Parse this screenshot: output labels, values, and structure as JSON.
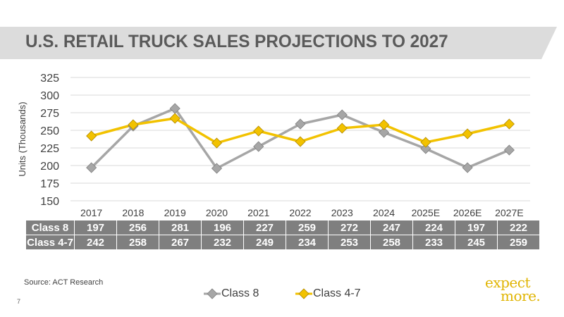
{
  "slide": {
    "title": "U.S. RETAIL TRUCK SALES PROJECTIONS TO 2027",
    "source": "Source:  ACT Research",
    "slide_number": "7",
    "logo_line1": "expect",
    "logo_line2": "more."
  },
  "colors": {
    "title_band": "#dcdcdc",
    "title_text": "#5a5a5a",
    "class8": "#a6a6a6",
    "class4_7": "#f2c200",
    "table_bg": "#7f7f7f",
    "logo": "#e0b400"
  },
  "chart_data": {
    "type": "line",
    "title": "U.S. RETAIL TRUCK SALES PROJECTIONS TO 2027",
    "ylabel": "Units (Thousands)",
    "xlabel": "",
    "ylim": [
      150,
      325
    ],
    "yticks": [
      150,
      175,
      200,
      225,
      250,
      275,
      300,
      325
    ],
    "grid": true,
    "legend_position": "bottom",
    "categories": [
      "2017",
      "2018",
      "2019",
      "2020",
      "2021",
      "2022",
      "2023",
      "2024",
      "2025E",
      "2026E",
      "2027E"
    ],
    "series": [
      {
        "name": "Class 8",
        "label": "Class 8",
        "marker": "gray-diamond",
        "values": [
          197,
          256,
          281,
          196,
          227,
          259,
          272,
          247,
          224,
          197,
          222
        ]
      },
      {
        "name": "Class 4-7",
        "label": "Class 4-7",
        "marker": "gold-diamond",
        "values": [
          242,
          258,
          267,
          232,
          249,
          234,
          253,
          258,
          233,
          245,
          259
        ]
      }
    ]
  }
}
